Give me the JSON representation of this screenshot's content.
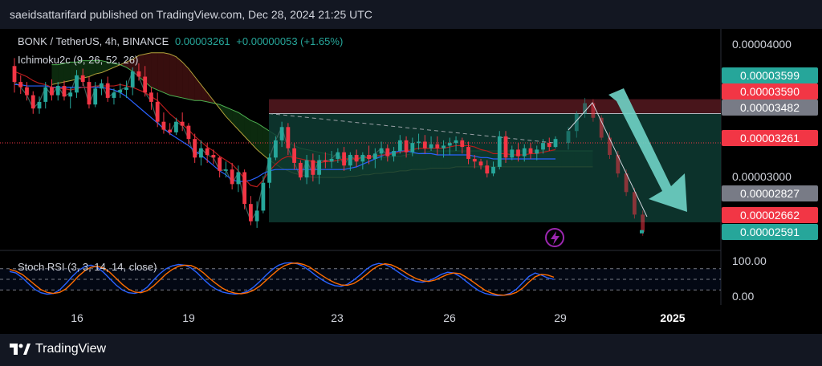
{
  "header": {
    "published_text": "saeidsattarifard published on TradingView.com, Dec 28, 2024 21:25 UTC"
  },
  "legend": {
    "symbol": "BONK / TetherUS, 4h, BINANCE",
    "price": "0.00003261",
    "change": "+0.00000053 (+1.65%)",
    "indicator1": "Ichimoku2c (9, 26, 52, 26)",
    "indicator2": "Stoch RSI (3, 3, 14, 14, close)"
  },
  "price_axis": {
    "ticks": [
      {
        "label": "0.00004000",
        "value": 4e-05
      },
      {
        "label": "0.00003000",
        "value": 3e-05
      }
    ]
  },
  "price_badges": [
    {
      "label": "0.00003599",
      "value": 3.599e-05,
      "color": "#26a69a"
    },
    {
      "label": "0.00003590",
      "value": 3.59e-05,
      "color": "#f23645"
    },
    {
      "label": "0.00003482",
      "value": 3.482e-05,
      "color": "#787b86"
    },
    {
      "label": "0.00003261",
      "value": 3.261e-05,
      "color": "#f23645"
    },
    {
      "label": "0.00002827",
      "value": 2.827e-05,
      "color": "#787b86"
    },
    {
      "label": "0.00002662",
      "value": 2.662e-05,
      "color": "#f23645"
    },
    {
      "label": "0.00002591",
      "value": 2.591e-05,
      "color": "#26a69a"
    }
  ],
  "stoch_axis": {
    "ticks": [
      {
        "label": "100.00",
        "value": 100
      },
      {
        "label": "0.00",
        "value": 0
      }
    ]
  },
  "time_axis": {
    "labels": [
      {
        "label": "16",
        "bold": false
      },
      {
        "label": "19",
        "bold": false
      },
      {
        "label": "23",
        "bold": false
      },
      {
        "label": "26",
        "bold": false
      },
      {
        "label": "29",
        "bold": false
      },
      {
        "label": "2025",
        "bold": true
      }
    ]
  },
  "footer": {
    "brand": "TradingView"
  },
  "colors": {
    "bull": "#26a69a",
    "bear": "#f23645",
    "teal_zone": "#0e3b33",
    "red_zone": "#5a1a22",
    "stoch_k": "#2962ff",
    "stoch_d": "#ff6d00",
    "arrow": "#6fd3c6"
  },
  "chart_data": {
    "type": "candlestick",
    "price_range": [
      2.45e-05,
      4.12e-05
    ],
    "candles": [
      [
        3.84,
        3.9,
        3.64,
        3.72
      ],
      [
        3.72,
        3.77,
        3.63,
        3.68
      ],
      [
        3.68,
        3.72,
        3.58,
        3.62
      ],
      [
        3.62,
        3.65,
        3.48,
        3.52
      ],
      [
        3.52,
        3.61,
        3.48,
        3.57
      ],
      [
        3.57,
        3.72,
        3.52,
        3.68
      ],
      [
        3.68,
        3.74,
        3.58,
        3.62
      ],
      [
        3.62,
        3.72,
        3.58,
        3.69
      ],
      [
        3.69,
        3.73,
        3.58,
        3.61
      ],
      [
        3.61,
        3.68,
        3.52,
        3.64
      ],
      [
        3.64,
        3.81,
        3.6,
        3.77
      ],
      [
        3.77,
        3.82,
        3.69,
        3.72
      ],
      [
        3.72,
        3.76,
        3.52,
        3.55
      ],
      [
        3.55,
        3.72,
        3.53,
        3.67
      ],
      [
        3.67,
        3.74,
        3.62,
        3.71
      ],
      [
        3.71,
        3.76,
        3.57,
        3.6
      ],
      [
        3.6,
        3.67,
        3.55,
        3.64
      ],
      [
        3.64,
        3.71,
        3.6,
        3.66
      ],
      [
        3.66,
        3.73,
        3.6,
        3.68
      ],
      [
        3.68,
        3.83,
        3.62,
        3.8
      ],
      [
        3.8,
        3.86,
        3.73,
        3.76
      ],
      [
        3.76,
        3.84,
        3.61,
        3.64
      ],
      [
        3.64,
        3.68,
        3.51,
        3.57
      ],
      [
        3.57,
        3.64,
        3.38,
        3.42
      ],
      [
        3.42,
        3.49,
        3.33,
        3.36
      ],
      [
        3.36,
        3.41,
        3.32,
        3.34
      ],
      [
        3.34,
        3.45,
        3.32,
        3.42
      ],
      [
        3.42,
        3.49,
        3.35,
        3.39
      ],
      [
        3.39,
        3.41,
        3.25,
        3.29
      ],
      [
        3.29,
        3.33,
        3.11,
        3.15
      ],
      [
        3.15,
        3.28,
        3.09,
        3.22
      ],
      [
        3.22,
        3.26,
        3.11,
        3.17
      ],
      [
        3.17,
        3.21,
        3.1,
        3.15
      ],
      [
        3.15,
        3.16,
        3.0,
        3.05
      ],
      [
        3.05,
        3.12,
        3.0,
        3.06
      ],
      [
        3.06,
        3.11,
        2.91,
        2.95
      ],
      [
        2.95,
        3.09,
        2.89,
        3.04
      ],
      [
        3.04,
        3.06,
        2.76,
        2.8
      ],
      [
        2.8,
        2.86,
        2.64,
        2.67
      ],
      [
        2.67,
        2.82,
        2.62,
        2.75
      ],
      [
        2.75,
        3.01,
        2.73,
        2.96
      ],
      [
        2.96,
        3.18,
        2.92,
        3.15
      ],
      [
        3.15,
        3.31,
        3.13,
        3.28
      ],
      [
        3.28,
        3.42,
        3.23,
        3.38
      ],
      [
        3.38,
        3.41,
        3.17,
        3.22
      ],
      [
        3.22,
        3.26,
        3.06,
        3.11
      ],
      [
        3.11,
        3.13,
        2.98,
        3.0
      ],
      [
        3.0,
        3.17,
        2.95,
        3.13
      ],
      [
        3.13,
        3.18,
        2.97,
        3.02
      ],
      [
        3.02,
        3.17,
        2.95,
        3.13
      ],
      [
        3.13,
        3.19,
        3.07,
        3.12
      ],
      [
        3.12,
        3.2,
        3.07,
        3.14
      ],
      [
        3.14,
        3.22,
        3.11,
        3.19
      ],
      [
        3.19,
        3.23,
        3.05,
        3.09
      ],
      [
        3.09,
        3.19,
        3.05,
        3.17
      ],
      [
        3.17,
        3.21,
        3.08,
        3.12
      ],
      [
        3.12,
        3.19,
        3.06,
        3.17
      ],
      [
        3.17,
        3.24,
        3.1,
        3.14
      ],
      [
        3.14,
        3.22,
        3.07,
        3.18
      ],
      [
        3.18,
        3.27,
        3.13,
        3.22
      ],
      [
        3.22,
        3.25,
        3.12,
        3.16
      ],
      [
        3.16,
        3.23,
        3.12,
        3.2
      ],
      [
        3.2,
        3.32,
        3.18,
        3.28
      ],
      [
        3.28,
        3.31,
        3.15,
        3.19
      ],
      [
        3.19,
        3.3,
        3.16,
        3.26
      ],
      [
        3.26,
        3.33,
        3.21,
        3.27
      ],
      [
        3.27,
        3.32,
        3.18,
        3.22
      ],
      [
        3.22,
        3.31,
        3.2,
        3.25
      ],
      [
        3.25,
        3.31,
        3.17,
        3.22
      ],
      [
        3.22,
        3.28,
        3.15,
        3.24
      ],
      [
        3.24,
        3.3,
        3.17,
        3.26
      ],
      [
        3.26,
        3.31,
        3.2,
        3.28
      ],
      [
        3.28,
        3.3,
        3.18,
        3.23
      ],
      [
        3.23,
        3.27,
        3.1,
        3.14
      ],
      [
        3.14,
        3.17,
        3.07,
        3.12
      ],
      [
        3.12,
        3.14,
        3.06,
        3.09
      ],
      [
        3.09,
        3.13,
        3.0,
        3.03
      ],
      [
        3.03,
        3.12,
        3.01,
        3.08
      ],
      [
        3.08,
        3.35,
        3.06,
        3.31
      ],
      [
        3.31,
        3.35,
        3.11,
        3.15
      ],
      [
        3.15,
        3.24,
        3.13,
        3.21
      ],
      [
        3.21,
        3.26,
        3.12,
        3.16
      ],
      [
        3.16,
        3.25,
        3.12,
        3.22
      ],
      [
        3.22,
        3.26,
        3.14,
        3.18
      ],
      [
        3.18,
        3.24,
        3.13,
        3.21
      ],
      [
        3.21,
        3.29,
        3.18,
        3.26
      ],
      [
        3.26,
        3.3,
        3.2,
        3.23
      ],
      [
        3.23,
        3.31,
        3.22,
        3.29
      ]
    ],
    "stoch_k": [
      72,
      68,
      55,
      38,
      22,
      12,
      8,
      10,
      20,
      38,
      58,
      75,
      86,
      90,
      84,
      70,
      52,
      34,
      20,
      12,
      10,
      15,
      28,
      48,
      66,
      80,
      88,
      92,
      90,
      82,
      68,
      50,
      34,
      22,
      14,
      10,
      8,
      10,
      16,
      28,
      44,
      62,
      78,
      90,
      96,
      97,
      94,
      86,
      74,
      60,
      48,
      38,
      32,
      30,
      36,
      48,
      62,
      78,
      90,
      95,
      92,
      84,
      72,
      60,
      50,
      44,
      42,
      46,
      54,
      64,
      70,
      68,
      58,
      44,
      30,
      18,
      10,
      6,
      4,
      5,
      10,
      22,
      40,
      58,
      68,
      62,
      54,
      50
    ],
    "stoch_d": [
      78,
      73,
      64,
      50,
      35,
      21,
      13,
      10,
      13,
      23,
      40,
      59,
      74,
      84,
      87,
      82,
      70,
      53,
      36,
      22,
      14,
      12,
      18,
      31,
      48,
      65,
      78,
      87,
      90,
      89,
      81,
      68,
      52,
      38,
      25,
      16,
      11,
      9,
      12,
      19,
      31,
      47,
      63,
      78,
      89,
      95,
      96,
      92,
      84,
      72,
      60,
      49,
      40,
      34,
      33,
      38,
      49,
      63,
      78,
      89,
      94,
      91,
      83,
      72,
      61,
      52,
      46,
      44,
      48,
      56,
      64,
      68,
      66,
      56,
      44,
      31,
      19,
      11,
      6,
      5,
      7,
      13,
      25,
      42,
      57,
      64,
      62,
      56
    ],
    "ichimoku": {
      "conversion": [
        3.8,
        3.78,
        3.76,
        3.73,
        3.71,
        3.7,
        3.68,
        3.67,
        3.67,
        3.66,
        3.67,
        3.68,
        3.68,
        3.69,
        3.69,
        3.69,
        3.69,
        3.7,
        3.69,
        3.68,
        3.66,
        3.64,
        3.61,
        3.58,
        3.53,
        3.48,
        3.44,
        3.4,
        3.36,
        3.31,
        3.27,
        3.23,
        3.2,
        3.16,
        3.13,
        3.1,
        3.05,
        2.99,
        2.94,
        2.93,
        2.98,
        3.05,
        3.1,
        3.14,
        3.16,
        3.15,
        3.14,
        3.13,
        3.12,
        3.11,
        3.12,
        3.12,
        3.13,
        3.14,
        3.14,
        3.14,
        3.15,
        3.15,
        3.16,
        3.17,
        3.17,
        3.18,
        3.19,
        3.2,
        3.21,
        3.22,
        3.22,
        3.22,
        3.22,
        3.22,
        3.23,
        3.24,
        3.24,
        3.24,
        3.23,
        3.21,
        3.2,
        3.18,
        3.18,
        3.18,
        3.17,
        3.17,
        3.17,
        3.18,
        3.18,
        3.19,
        3.2,
        3.21
      ],
      "base": [
        3.7,
        3.7,
        3.69,
        3.69,
        3.69,
        3.69,
        3.68,
        3.68,
        3.68,
        3.68,
        3.68,
        3.68,
        3.68,
        3.68,
        3.68,
        3.67,
        3.66,
        3.64,
        3.61,
        3.57,
        3.53,
        3.49,
        3.45,
        3.41,
        3.37,
        3.33,
        3.3,
        3.27,
        3.24,
        3.2,
        3.17,
        3.13,
        3.09,
        3.05,
        3.02,
        2.98,
        2.97,
        2.97,
        2.98,
        3.0,
        3.03,
        3.05,
        3.06,
        3.06,
        3.06,
        3.06,
        3.06,
        3.06,
        3.06,
        3.06,
        3.06,
        3.06,
        3.06,
        3.06,
        3.07,
        3.08,
        3.1,
        3.12,
        3.14,
        3.16,
        3.18,
        3.19,
        3.2,
        3.2,
        3.19,
        3.18,
        3.18,
        3.18,
        3.17,
        3.17,
        3.17,
        3.17,
        3.17,
        3.17,
        3.16,
        3.15,
        3.15,
        3.14,
        3.14,
        3.14,
        3.14,
        3.14,
        3.14,
        3.14,
        3.14,
        3.14,
        3.14,
        3.14
      ],
      "span_a": [
        3.85,
        3.85,
        3.86,
        3.87,
        3.87,
        3.88,
        3.88,
        3.88,
        3.88,
        3.87,
        3.86,
        3.85,
        3.83,
        3.8,
        3.76,
        3.72,
        3.68,
        3.66,
        3.64,
        3.62,
        3.61,
        3.6,
        3.59,
        3.58,
        3.58,
        3.57,
        3.56,
        3.55,
        3.53,
        3.51,
        3.49,
        3.46,
        3.43,
        3.41,
        3.38,
        3.35,
        3.32,
        3.29,
        3.26,
        3.24,
        3.22,
        3.21,
        3.2,
        3.19,
        3.18,
        3.17,
        3.16,
        3.16,
        3.15,
        3.15,
        3.15,
        3.15,
        3.15,
        3.15,
        3.15,
        3.16,
        3.16,
        3.17,
        3.18,
        3.18,
        3.19,
        3.2,
        3.2,
        3.2,
        3.2,
        3.2,
        3.2,
        3.2,
        3.2,
        3.2,
        3.2,
        3.2,
        3.2,
        3.2,
        3.2,
        3.2,
        3.2,
        3.2,
        3.2,
        3.2,
        3.2,
        3.2,
        3.2,
        3.2,
        3.2,
        3.2,
        3.2,
        3.2
      ],
      "span_b": [
        3.7,
        3.71,
        3.72,
        3.73,
        3.74,
        3.75,
        3.76,
        3.78,
        3.79,
        3.81,
        3.83,
        3.85,
        3.87,
        3.89,
        3.92,
        3.93,
        3.94,
        3.94,
        3.94,
        3.93,
        3.91,
        3.87,
        3.82,
        3.76,
        3.7,
        3.64,
        3.58,
        3.52,
        3.46,
        3.41,
        3.36,
        3.31,
        3.26,
        3.21,
        3.17,
        3.13,
        3.1,
        3.07,
        3.05,
        3.03,
        3.02,
        3.01,
        3.0,
        3.0,
        3.0,
        3.0,
        3.0,
        3.0,
        3.01,
        3.01,
        3.02,
        3.02,
        3.03,
        3.03,
        3.04,
        3.04,
        3.05,
        3.05,
        3.06,
        3.06,
        3.06,
        3.07,
        3.07,
        3.07,
        3.07,
        3.08,
        3.08,
        3.08,
        3.08,
        3.08,
        3.08,
        3.08,
        3.08,
        3.08,
        3.08,
        3.08,
        3.08,
        3.08,
        3.08,
        3.08,
        3.08,
        3.08,
        3.08,
        3.08,
        3.08,
        3.08,
        3.08,
        3.08
      ],
      "lagging": [
        3.72,
        3.68,
        3.62,
        3.52,
        3.57,
        3.68,
        3.62,
        3.69,
        3.61,
        3.64,
        3.77,
        3.72,
        3.55,
        3.67,
        3.71,
        3.6,
        3.64,
        3.66,
        3.68,
        3.8,
        3.76,
        3.64,
        3.57,
        3.42,
        3.36,
        3.34,
        3.42,
        3.39,
        3.29,
        3.15,
        3.22,
        3.17,
        3.15,
        3.05,
        3.06,
        2.95,
        3.04,
        2.8,
        2.67,
        2.75,
        2.96,
        3.15,
        3.28,
        3.38,
        3.22,
        3.11,
        3.0,
        3.13,
        3.02,
        3.13,
        3.12,
        3.14,
        3.19,
        3.09,
        3.17,
        3.12,
        3.17,
        3.14,
        3.18,
        3.22,
        3.16,
        3.2
      ]
    },
    "zone_top": 3.482e-05,
    "zone_entry": 3.261e-05,
    "zone_bottom": 2.662e-05,
    "zone_stop": 3.59e-05,
    "recent_candles": [
      [
        3.26,
        3.38,
        3.21,
        3.35
      ],
      [
        3.35,
        3.5,
        3.3,
        3.48
      ],
      [
        3.48,
        3.6,
        3.45,
        3.56
      ],
      [
        3.56,
        3.59,
        3.42,
        3.45
      ],
      [
        3.45,
        3.47,
        3.28,
        3.3
      ],
      [
        3.3,
        3.34,
        3.14,
        3.17
      ],
      [
        3.17,
        3.2,
        3.0,
        3.03
      ],
      [
        3.03,
        3.06,
        2.86,
        2.89
      ],
      [
        2.89,
        2.92,
        2.69,
        2.72
      ],
      [
        2.72,
        2.75,
        2.56,
        2.59
      ]
    ]
  }
}
